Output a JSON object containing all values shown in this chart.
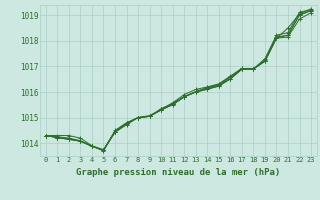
{
  "title": "Graphe pression niveau de la mer (hPa)",
  "bg_color": "#cce8e0",
  "grid_color": "#aacfc8",
  "line_color": "#2d6e2d",
  "x_min": -0.5,
  "x_max": 23.5,
  "y_min": 1013.5,
  "y_max": 1019.4,
  "yticks": [
    1014,
    1015,
    1016,
    1017,
    1018,
    1019
  ],
  "xticks": [
    0,
    1,
    2,
    3,
    4,
    5,
    6,
    7,
    8,
    9,
    10,
    11,
    12,
    13,
    14,
    15,
    16,
    17,
    18,
    19,
    20,
    21,
    22,
    23
  ],
  "series": [
    [
      1014.3,
      1014.3,
      1014.3,
      1014.2,
      1013.9,
      1013.7,
      1014.5,
      1014.8,
      1015.0,
      1015.05,
      1015.35,
      1015.55,
      1015.82,
      1016.0,
      1016.1,
      1016.25,
      1016.5,
      1016.9,
      1016.9,
      1017.2,
      1018.1,
      1018.5,
      1019.05,
      1019.25
    ],
    [
      1014.3,
      1014.25,
      1014.2,
      1014.1,
      1013.88,
      1013.72,
      1014.45,
      1014.78,
      1015.0,
      1015.05,
      1015.3,
      1015.5,
      1015.8,
      1016.0,
      1016.12,
      1016.22,
      1016.52,
      1016.88,
      1016.9,
      1017.2,
      1018.1,
      1018.15,
      1018.85,
      1019.1
    ],
    [
      1014.3,
      1014.22,
      1014.18,
      1014.08,
      1013.88,
      1013.72,
      1014.45,
      1014.78,
      1015.0,
      1015.05,
      1015.3,
      1015.52,
      1015.82,
      1016.02,
      1016.18,
      1016.28,
      1016.6,
      1016.92,
      1016.9,
      1017.22,
      1018.12,
      1018.22,
      1019.0,
      1019.18
    ],
    [
      1014.3,
      1014.22,
      1014.15,
      1014.08,
      1013.88,
      1013.72,
      1014.42,
      1014.72,
      1015.0,
      1015.08,
      1015.32,
      1015.58,
      1015.9,
      1016.1,
      1016.2,
      1016.32,
      1016.62,
      1016.92,
      1016.9,
      1017.3,
      1018.22,
      1018.32,
      1019.12,
      1019.22
    ],
    [
      1014.3,
      1014.22,
      1014.15,
      1014.08,
      1013.9,
      1013.75,
      1014.45,
      1014.75,
      1015.0,
      1015.05,
      1015.3,
      1015.52,
      1015.82,
      1016.0,
      1016.15,
      1016.27,
      1016.57,
      1016.9,
      1016.9,
      1017.25,
      1018.15,
      1018.22,
      1019.02,
      1019.18
    ]
  ]
}
